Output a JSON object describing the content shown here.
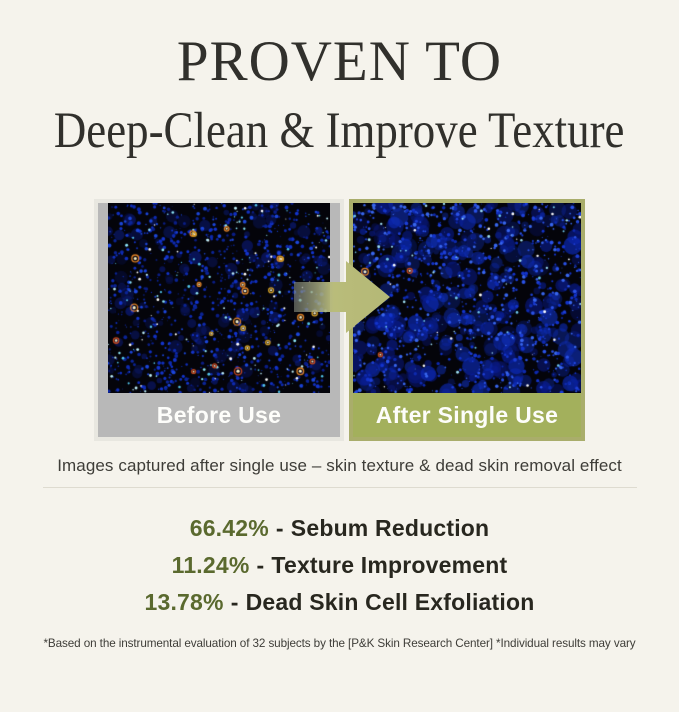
{
  "page": {
    "background_color": "#f5f3ec"
  },
  "header": {
    "title": "PROVEN TO",
    "subtitle": "Deep-Clean & Improve Texture",
    "text_color": "#31302c"
  },
  "comparison": {
    "before_label": "Before Use",
    "after_label": "After Single Use",
    "caption": "Images captured after single use – skin texture & dead skin removal effect",
    "arrow_icon": "arrow-right-icon",
    "colors": {
      "before_band": "#b8b8b8",
      "after_band": "#a3b05c",
      "after_border": "#a9ad6b",
      "arrow_olive": "#babd7c"
    }
  },
  "stats": {
    "accent_color": "#5a692e",
    "items": [
      {
        "value": "66.42%",
        "separator": "-",
        "label": "Sebum Reduction"
      },
      {
        "value": "11.24%",
        "separator": "-",
        "label": "Texture Improvement"
      },
      {
        "value": "13.78%",
        "separator": "-",
        "label": "Dead Skin Cell Exfoliation"
      }
    ]
  },
  "footnote": "*Based on the instrumental evaluation of 32 subjects by the [P&K Skin Research Center] *Individual results may vary"
}
